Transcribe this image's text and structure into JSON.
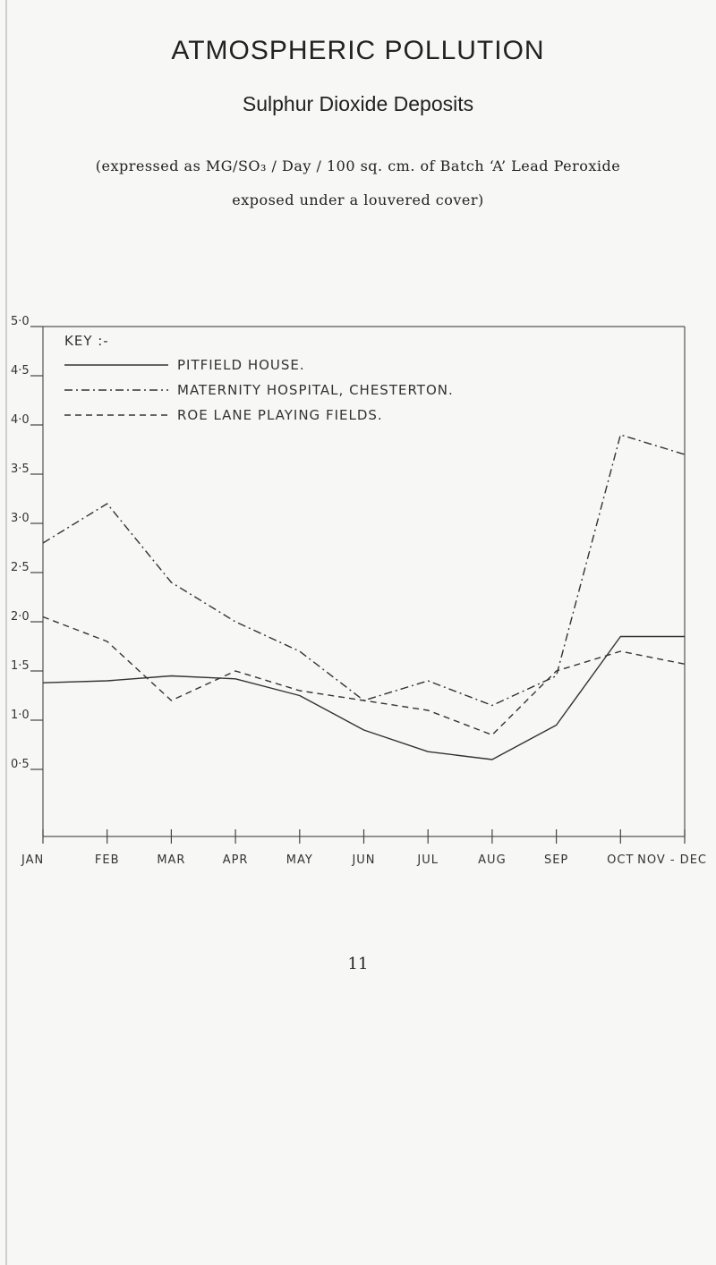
{
  "page": {
    "title": "ATMOSPHERIC POLLUTION",
    "subtitle": "Sulphur Dioxide Deposits",
    "description_line1": "(expressed as MG/SO₃ / Day / 100 sq. cm. of Batch ‘A’ Lead Peroxide",
    "description_line2": "exposed under a louvered cover)",
    "page_number": "11"
  },
  "chart_data": {
    "type": "line",
    "title": "",
    "xlabel": "",
    "ylabel": "",
    "ylim": [
      0,
      5
    ],
    "y_ticks": [
      {
        "value": 0.5,
        "label": "0·5"
      },
      {
        "value": 1.0,
        "label": "1·0"
      },
      {
        "value": 1.5,
        "label": "1·5"
      },
      {
        "value": 2.0,
        "label": "2·0"
      },
      {
        "value": 2.5,
        "label": "2·5"
      },
      {
        "value": 3.0,
        "label": "3·0"
      },
      {
        "value": 3.5,
        "label": "3·5"
      },
      {
        "value": 4.0,
        "label": "4·0"
      },
      {
        "value": 4.5,
        "label": "4·5"
      },
      {
        "value": 5.0,
        "label": "5·0"
      }
    ],
    "categories": [
      "JAN",
      "FEB",
      "MAR",
      "APR",
      "MAY",
      "JUN",
      "JUL",
      "AUG",
      "SEP",
      "OCT",
      "NOV - DEC"
    ],
    "legend_title": "KEY :-",
    "legend_position": "top-left",
    "series": [
      {
        "name": "PITFIELD HOUSE.",
        "style": "solid",
        "values": [
          1.38,
          1.4,
          1.45,
          1.42,
          1.25,
          0.9,
          0.68,
          0.6,
          0.95,
          1.85,
          1.85
        ]
      },
      {
        "name": "MATERNITY HOSPITAL, CHESTERTON.",
        "style": "dashdot",
        "values": [
          2.8,
          3.2,
          2.4,
          2.0,
          1.7,
          1.2,
          1.4,
          1.15,
          1.45,
          3.9,
          3.7
        ]
      },
      {
        "name": "ROE LANE PLAYING FIELDS.",
        "style": "dashed",
        "values": [
          2.05,
          1.8,
          1.2,
          1.5,
          1.3,
          1.2,
          1.1,
          0.85,
          1.5,
          1.7,
          1.57
        ]
      }
    ]
  }
}
